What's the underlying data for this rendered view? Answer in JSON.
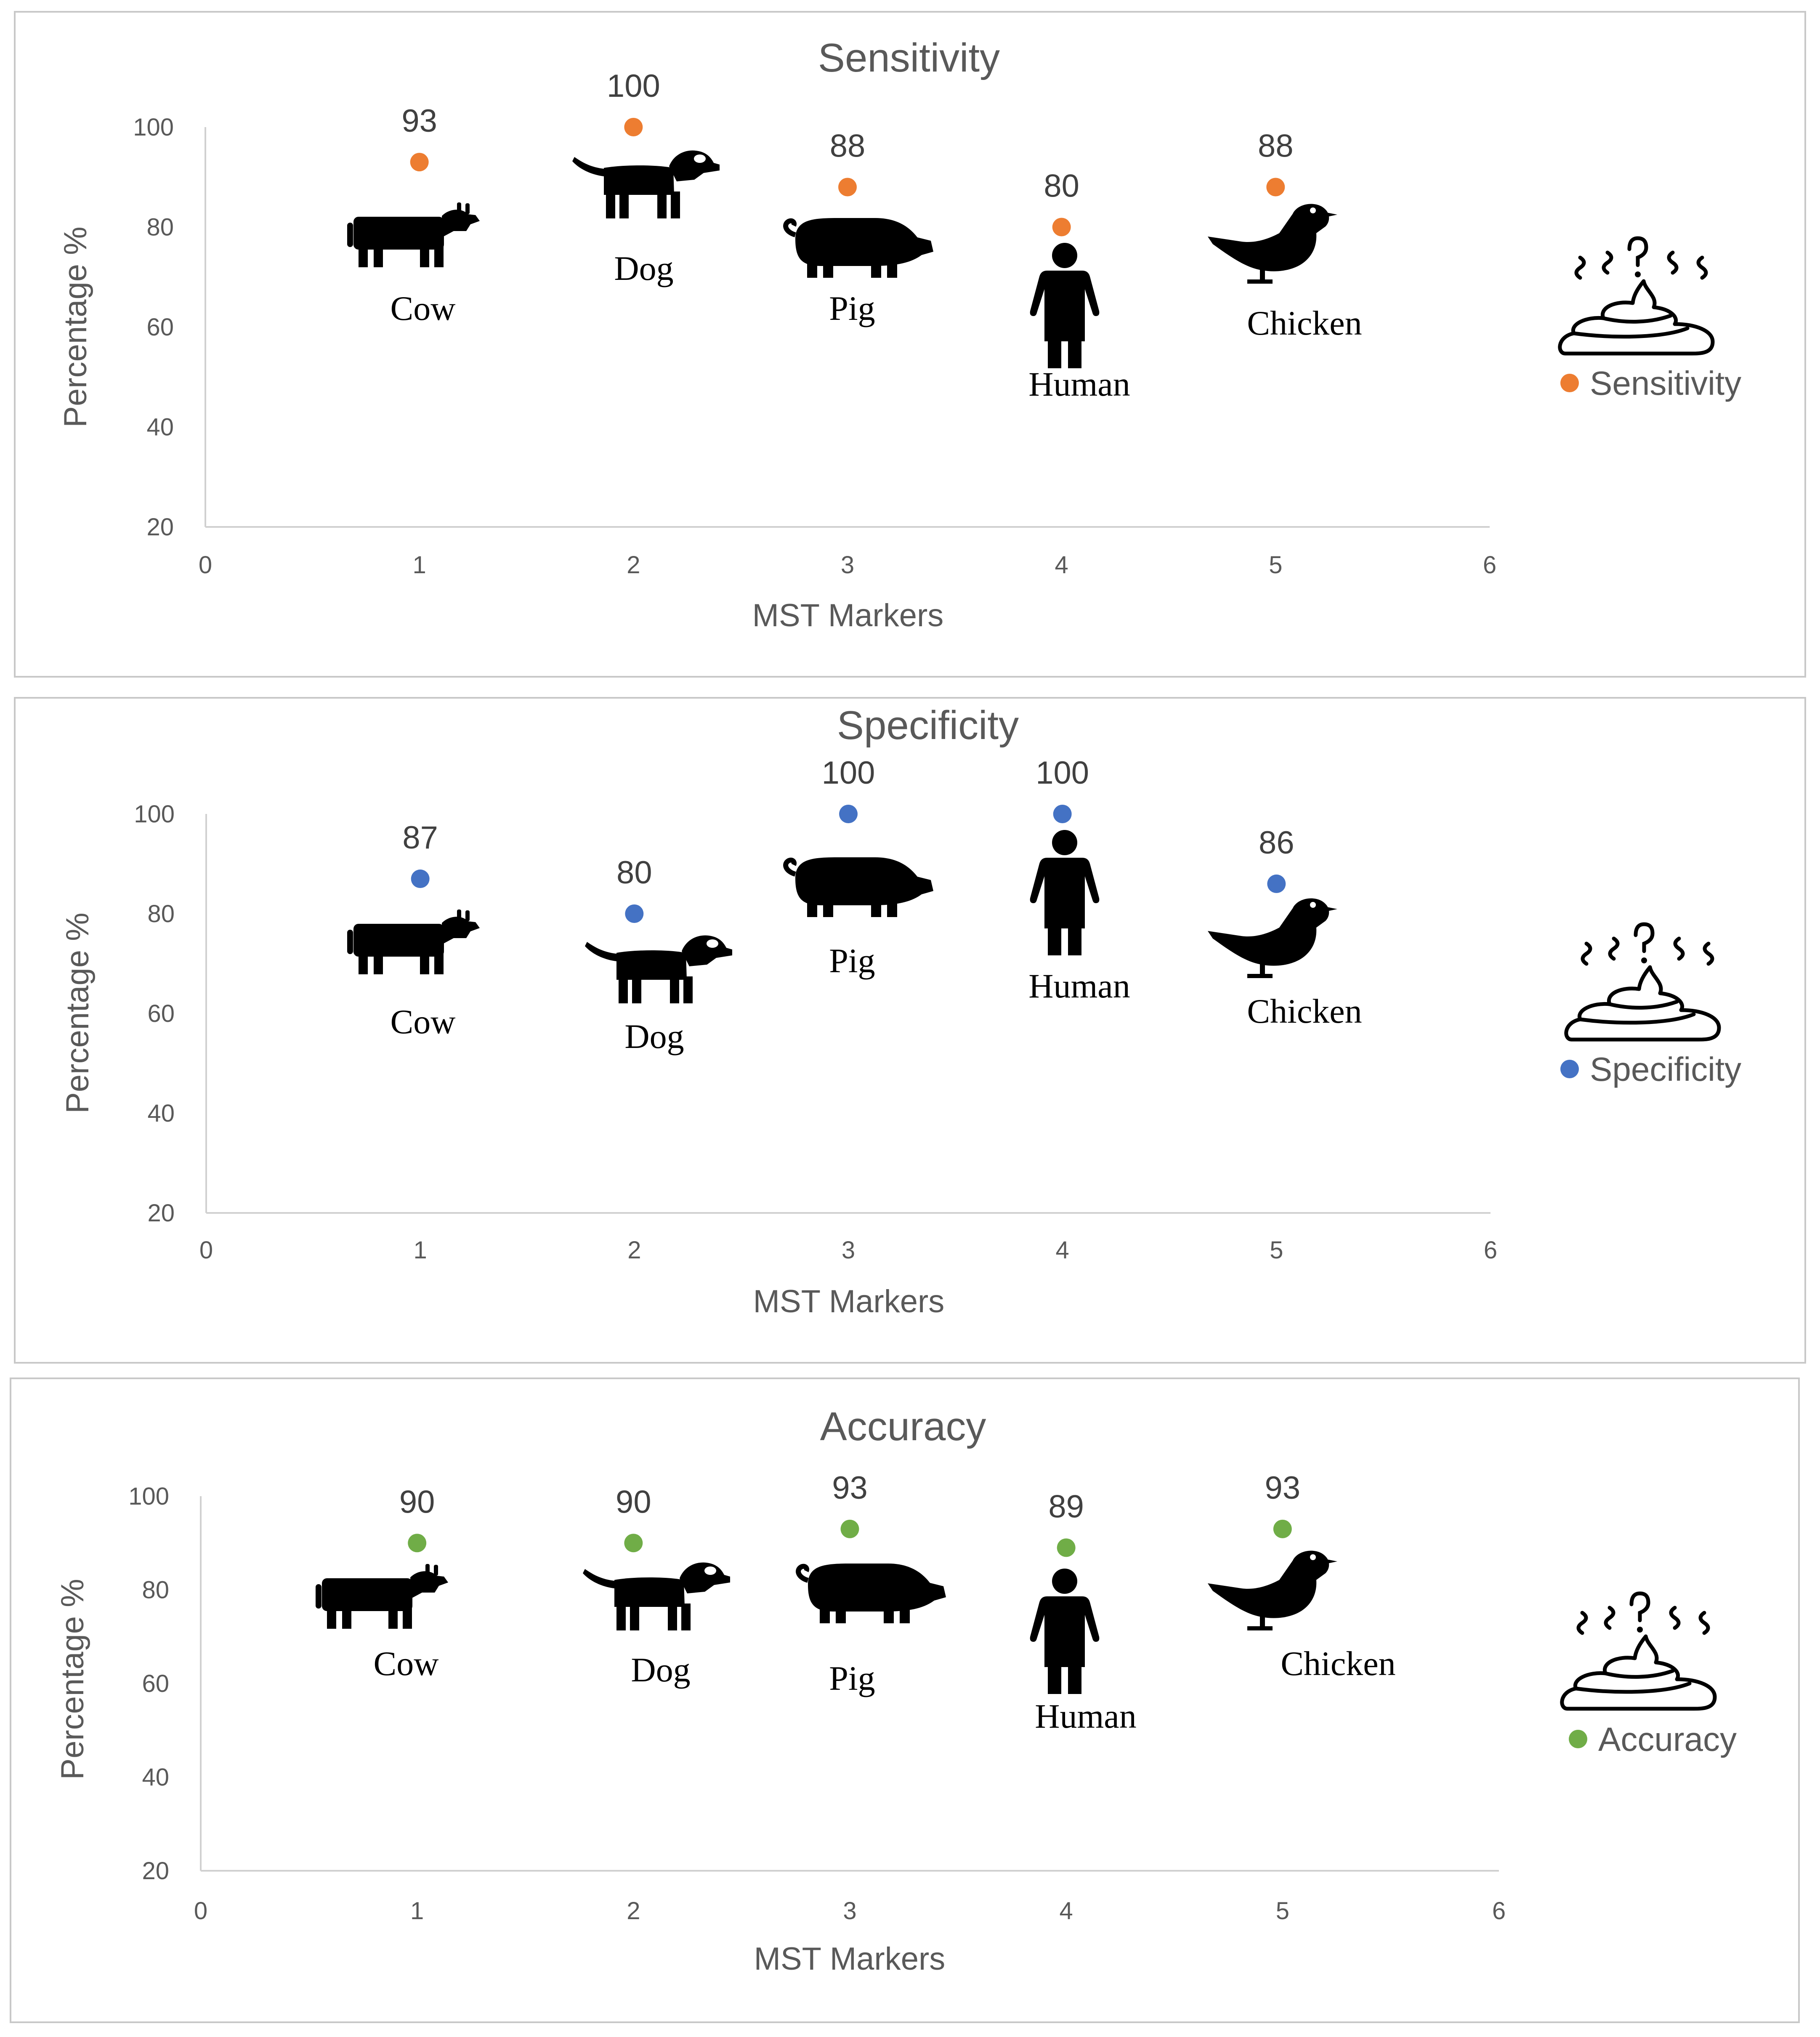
{
  "chart_data": [
    {
      "type": "scatter",
      "title": "Sensitivity",
      "xlabel": "MST Markers",
      "ylabel": "Percentage %",
      "xlim": [
        0,
        6
      ],
      "ylim": [
        20,
        100
      ],
      "x_ticks": [
        "0",
        "1",
        "2",
        "3",
        "4",
        "5",
        "6"
      ],
      "y_ticks": [
        "20",
        "40",
        "60",
        "80",
        "100"
      ],
      "grid": false,
      "legend_position": "right",
      "series": [
        {
          "name": "Sensitivity",
          "color": "#ED7D31",
          "x": [
            1,
            2,
            3,
            4,
            5
          ],
          "values": [
            93,
            100,
            88,
            80,
            88
          ],
          "data_labels": [
            "93",
            "100",
            "88",
            "80",
            "88"
          ]
        }
      ],
      "categories": [
        "Cow",
        "Dog",
        "Pig",
        "Human",
        "Chicken"
      ],
      "icons": [
        "cow-icon",
        "dog-icon",
        "pig-icon",
        "human-icon",
        "chicken-icon"
      ],
      "legend_icon": "poop-icon"
    },
    {
      "type": "scatter",
      "title": "Specificity",
      "xlabel": "MST Markers",
      "ylabel": "Percentage %",
      "xlim": [
        0,
        6
      ],
      "ylim": [
        20,
        100
      ],
      "x_ticks": [
        "0",
        "1",
        "2",
        "3",
        "4",
        "5",
        "6"
      ],
      "y_ticks": [
        "20",
        "40",
        "60",
        "80",
        "100"
      ],
      "grid": false,
      "legend_position": "right",
      "series": [
        {
          "name": "Specificity",
          "color": "#4472C4",
          "x": [
            1,
            2,
            3,
            4,
            5
          ],
          "values": [
            87,
            80,
            100,
            100,
            86
          ],
          "data_labels": [
            "87",
            "80",
            "100",
            "100",
            "86"
          ]
        }
      ],
      "categories": [
        "Cow",
        "Dog",
        "Pig",
        "Human",
        "Chicken"
      ],
      "icons": [
        "cow-icon",
        "dog-icon",
        "pig-icon",
        "human-icon",
        "chicken-icon"
      ],
      "legend_icon": "poop-icon"
    },
    {
      "type": "scatter",
      "title": "Accuracy",
      "xlabel": "MST Markers",
      "ylabel": "Percentage %",
      "xlim": [
        0,
        6
      ],
      "ylim": [
        20,
        100
      ],
      "x_ticks": [
        "0",
        "1",
        "2",
        "3",
        "4",
        "5",
        "6"
      ],
      "y_ticks": [
        "20",
        "40",
        "60",
        "80",
        "100"
      ],
      "grid": false,
      "legend_position": "right",
      "series": [
        {
          "name": "Accuracy",
          "color": "#70AD47",
          "x": [
            1,
            2,
            3,
            4,
            5
          ],
          "values": [
            90,
            90,
            93,
            89,
            93
          ],
          "data_labels": [
            "90",
            "90",
            "93",
            "89",
            "93"
          ]
        }
      ],
      "categories": [
        "Cow",
        "Dog",
        "Pig",
        "Human",
        "Chicken"
      ],
      "icons": [
        "cow-icon",
        "dog-icon",
        "pig-icon",
        "human-icon",
        "chicken-icon"
      ],
      "legend_icon": "poop-icon"
    }
  ]
}
